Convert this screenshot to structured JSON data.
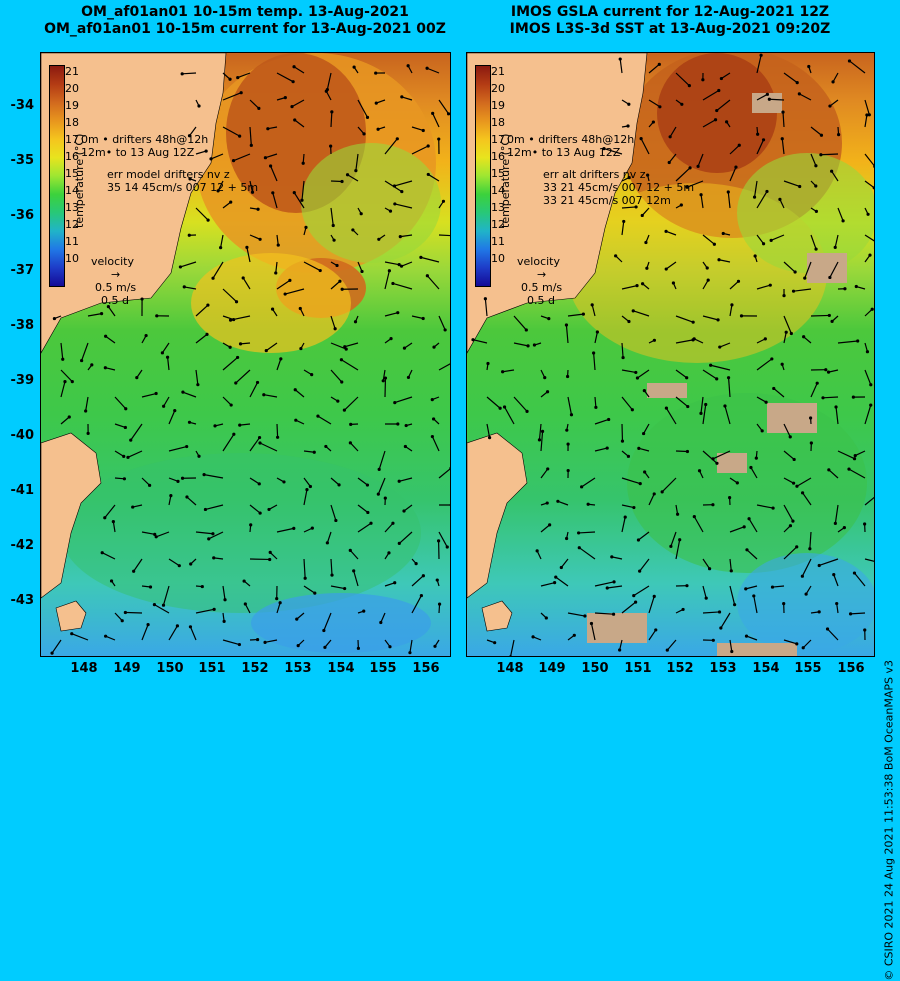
{
  "left_panel": {
    "title_line1": "OM_af01an01 10-15m temp. 13-Aug-2021",
    "title_line2": "OM_af01an01 10-15m current for 13-Aug-2021 00Z",
    "legend": {
      "drifters_line1": "0m  • drifters 48h@12h",
      "drifters_line2": "12m• to 13 Aug 12Z",
      "err_line1": "err model drifters nv z",
      "err_line2": "35 14 45cm/s 007 12 + 5m",
      "err_line3": ""
    },
    "velocity": {
      "label": "velocity",
      "speed": "0.5 m/s",
      "time": "0.5 d"
    }
  },
  "right_panel": {
    "title_line1": "IMOS GSLA current for 12-Aug-2021 12Z",
    "title_line2": "IMOS L3S-3d SST at 13-Aug-2021 09:20Z",
    "legend": {
      "drifters_line1": "0m  • drifters 48h@12h",
      "drifters_line2": "12m• to 13 Aug 12Z",
      "err_line1": "err alt drifters nv z",
      "err_line2": "33 21 45cm/s 007 12 + 5m",
      "err_line3": "33 21 45cm/s 007 12m"
    },
    "velocity": {
      "label": "velocity",
      "speed": "0.5 m/s",
      "time": "0.5 d"
    }
  },
  "colorbar": {
    "title": "temperature (°C)",
    "ticks": [
      "21",
      "20",
      "19",
      "18",
      "17",
      "16",
      "15",
      "14",
      "13",
      "12",
      "11",
      "10"
    ],
    "colors": [
      "#8b1a10",
      "#b43c14",
      "#d26a1e",
      "#e8961e",
      "#f5c51e",
      "#e8e41e",
      "#9ee632",
      "#3cd23c",
      "#28c878",
      "#20b4c8",
      "#2078e6",
      "#1e3cc8",
      "#140a96"
    ]
  },
  "y_ticks": [
    "-34",
    "-35",
    "-36",
    "-37",
    "-38",
    "-39",
    "-40",
    "-41",
    "-42",
    "-43"
  ],
  "x_ticks": [
    "148",
    "149",
    "150",
    "151",
    "152",
    "153",
    "154",
    "155",
    "156"
  ],
  "footer": "© CSIRO 2021  24 Aug 2021 11:53:38 BoM OceanMAPS v3",
  "colors": {
    "frame": "#00ccff",
    "land": "#f5c08e"
  }
}
